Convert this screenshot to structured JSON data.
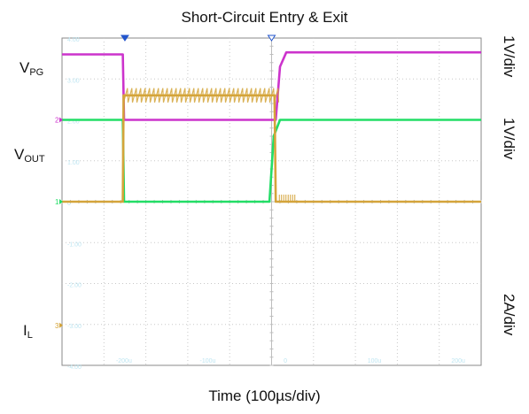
{
  "chart_data": {
    "type": "line",
    "title": "Short-Circuit Entry & Exit",
    "xlabel": "Time (100µs/div)",
    "scope": {
      "x_divisions": 10,
      "y_divisions": 8,
      "grid": true,
      "background": "#ffffff",
      "grid_color": "#c8c8c8",
      "faint_tick_labels": [
        "4.00",
        "3.00",
        "2.00",
        "1.00",
        "0",
        "-1.00",
        "-2.00",
        "-3.00",
        "-4.00"
      ],
      "faint_time_labels": [
        "-200u",
        "-100u",
        "0",
        "100u",
        "200u",
        "300u"
      ]
    },
    "series": [
      {
        "label_main": "V",
        "label_sub": "PG",
        "color": "#cc33cc",
        "scale": "1V/div",
        "x": [
          0,
          1.45,
          1.48,
          2.01,
          5.1,
          5.2,
          5.35,
          10
        ],
        "y": [
          3.6,
          3.6,
          2.0,
          2.0,
          2.0,
          3.3,
          3.65,
          3.65
        ]
      },
      {
        "label_main": "V",
        "label_sub": "OUT",
        "color": "#22dd66",
        "scale": "1V/div",
        "x": [
          0,
          1.45,
          1.48,
          4.95,
          5.05,
          5.2,
          10
        ],
        "y": [
          2.0,
          2.0,
          0.0,
          0.0,
          1.6,
          2.0,
          2.0
        ]
      },
      {
        "label_main": "I",
        "label_sub": "L",
        "color": "#d4a43a",
        "scale": "2A/div",
        "x": [
          0,
          1.45,
          1.47,
          5.07,
          5.1,
          10
        ],
        "y": [
          0.0,
          0.0,
          2.6,
          2.6,
          0.0,
          0.0
        ],
        "ripple_amplitude": 0.35
      }
    ],
    "ground_markers": [
      "2",
      "1",
      "3"
    ]
  }
}
